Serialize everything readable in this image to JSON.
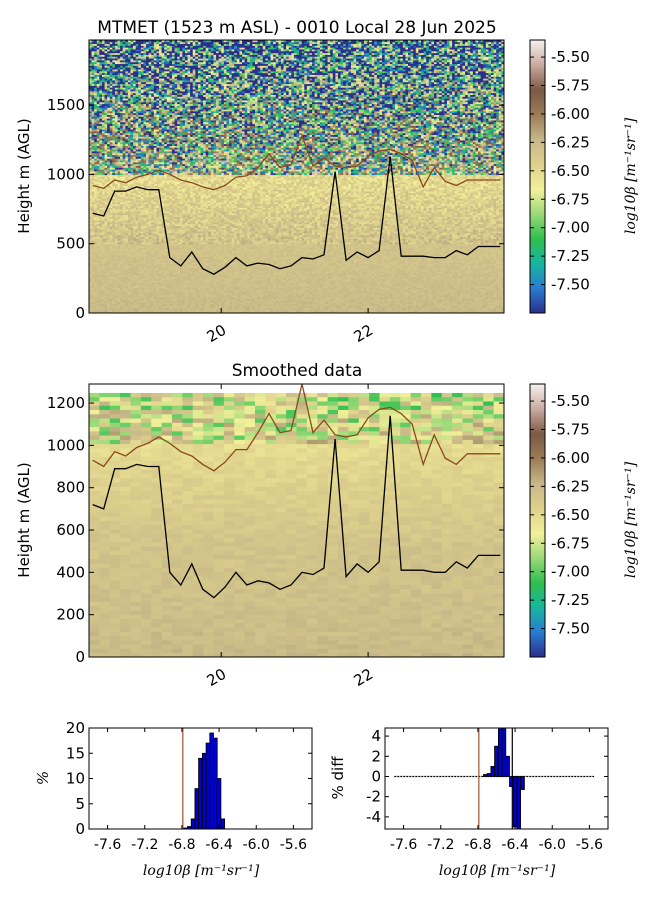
{
  "figure": {
    "title": "MTMET (1523 m ASL) - 0010 Local 28 Jun 2025"
  },
  "colorbar": {
    "label": "log10β [m⁻¹sr⁻¹]",
    "range": [
      -7.75,
      -5.35
    ],
    "ticks": [
      "-5.50",
      "-5.75",
      "-6.00",
      "-6.25",
      "-6.50",
      "-6.75",
      "-7.00",
      "-7.25",
      "-7.50"
    ],
    "colormap": [
      "#2b2f8a",
      "#2a7bd0",
      "#18b5a0",
      "#2fbf4f",
      "#9bd878",
      "#f3f09a",
      "#ddd08c",
      "#c7b888",
      "#9b7d58",
      "#7a5a45",
      "#c9a99e",
      "#f5f0ee"
    ]
  },
  "chart_data": [
    {
      "type": "heatmap",
      "title": "",
      "ylabel": "Height m (AGL)",
      "xlabel": "",
      "xlim": [
        18.2,
        23.85
      ],
      "ylim": [
        0,
        1970
      ],
      "xticks": [
        "20",
        "22"
      ],
      "xtick_values": [
        20,
        22
      ],
      "yticks": [
        "0",
        "500",
        "1000",
        "1500"
      ],
      "ytick_values": [
        0,
        500,
        1000,
        1500
      ],
      "series": [
        {
          "color": "#000000",
          "x": [
            18.25,
            18.4,
            18.55,
            18.7,
            18.85,
            19.0,
            19.15,
            19.3,
            19.45,
            19.6,
            19.75,
            19.9,
            20.05,
            20.2,
            20.35,
            20.5,
            20.65,
            20.8,
            20.95,
            21.1,
            21.25,
            21.4,
            21.55,
            21.7,
            21.85,
            22.0,
            22.15,
            22.3,
            22.45,
            22.6,
            22.75,
            22.9,
            23.05,
            23.2,
            23.35,
            23.5,
            23.65,
            23.8
          ],
          "y": [
            720,
            700,
            880,
            880,
            910,
            890,
            890,
            400,
            340,
            440,
            320,
            280,
            330,
            400,
            340,
            360,
            350,
            320,
            340,
            400,
            390,
            420,
            1020,
            380,
            440,
            400,
            450,
            1130,
            410,
            410,
            410,
            400,
            400,
            450,
            420,
            480,
            480,
            480
          ]
        },
        {
          "color": "#8a4a1e",
          "x": [
            18.25,
            18.4,
            18.55,
            18.7,
            18.85,
            19.0,
            19.15,
            19.3,
            19.45,
            19.6,
            19.75,
            19.9,
            20.05,
            20.2,
            20.35,
            20.5,
            20.65,
            20.8,
            20.95,
            21.1,
            21.25,
            21.4,
            21.55,
            21.7,
            21.85,
            22.0,
            22.15,
            22.3,
            22.45,
            22.6,
            22.75,
            22.9,
            23.05,
            23.2,
            23.35,
            23.5,
            23.65,
            23.8
          ],
          "y": [
            920,
            900,
            960,
            940,
            980,
            1000,
            1030,
            1000,
            960,
            940,
            910,
            890,
            920,
            980,
            990,
            1050,
            1150,
            1050,
            1070,
            1280,
            1060,
            1120,
            1060,
            1050,
            1060,
            1130,
            1170,
            1180,
            1150,
            1100,
            910,
            1050,
            950,
            920,
            960,
            960,
            960,
            960
          ]
        }
      ]
    },
    {
      "type": "heatmap",
      "title": "Smoothed data",
      "ylabel": "Height m (AGL)",
      "xlabel": "",
      "xlim": [
        18.2,
        23.85
      ],
      "ylim": [
        0,
        1290
      ],
      "xticks": [
        "20",
        "22"
      ],
      "xtick_values": [
        20,
        22
      ],
      "yticks": [
        "0",
        "200",
        "400",
        "600",
        "800",
        "1000",
        "1200"
      ],
      "ytick_values": [
        0,
        200,
        400,
        600,
        800,
        1000,
        1200
      ],
      "series": [
        {
          "color": "#000000",
          "x": [
            18.25,
            18.4,
            18.55,
            18.7,
            18.85,
            19.0,
            19.15,
            19.3,
            19.45,
            19.6,
            19.75,
            19.9,
            20.05,
            20.2,
            20.35,
            20.5,
            20.65,
            20.8,
            20.95,
            21.1,
            21.25,
            21.4,
            21.55,
            21.7,
            21.85,
            22.0,
            22.15,
            22.3,
            22.45,
            22.6,
            22.75,
            22.9,
            23.05,
            23.2,
            23.35,
            23.5,
            23.65,
            23.8
          ],
          "y": [
            720,
            700,
            890,
            890,
            910,
            900,
            900,
            400,
            340,
            440,
            320,
            280,
            330,
            400,
            340,
            360,
            350,
            320,
            340,
            400,
            390,
            420,
            1030,
            380,
            440,
            400,
            450,
            1140,
            410,
            410,
            410,
            400,
            400,
            450,
            420,
            480,
            480,
            480
          ]
        },
        {
          "color": "#8a4a1e",
          "x": [
            18.25,
            18.4,
            18.55,
            18.7,
            18.85,
            19.0,
            19.15,
            19.3,
            19.45,
            19.6,
            19.75,
            19.9,
            20.05,
            20.2,
            20.35,
            20.5,
            20.65,
            20.8,
            20.95,
            21.1,
            21.25,
            21.4,
            21.55,
            21.7,
            21.85,
            22.0,
            22.15,
            22.3,
            22.45,
            22.6,
            22.75,
            22.9,
            23.05,
            23.2,
            23.35,
            23.5,
            23.65,
            23.8
          ],
          "y": [
            930,
            900,
            970,
            950,
            990,
            1010,
            1040,
            1010,
            970,
            950,
            910,
            880,
            920,
            980,
            980,
            1060,
            1150,
            1060,
            1070,
            1290,
            1060,
            1120,
            1050,
            1040,
            1050,
            1130,
            1170,
            1180,
            1150,
            1100,
            910,
            1050,
            940,
            910,
            960,
            960,
            960,
            960
          ]
        }
      ]
    },
    {
      "type": "bar",
      "title": "",
      "ylabel": "%",
      "xlabel": "log10β [m⁻¹sr⁻¹]",
      "xlim": [
        -7.8,
        -5.4
      ],
      "ylim": [
        0,
        20
      ],
      "xticks": [
        "-7.6",
        "-7.2",
        "-6.8",
        "-6.4",
        "-6.0",
        "-5.6"
      ],
      "xtick_values": [
        -7.6,
        -7.2,
        -6.8,
        -6.4,
        -6.0,
        -5.6
      ],
      "yticks": [
        "0",
        "5",
        "10",
        "15",
        "20"
      ],
      "ytick_values": [
        0,
        5,
        10,
        15,
        20
      ],
      "vline": -6.79,
      "bar_width": 0.04,
      "x": [
        -6.76,
        -6.72,
        -6.68,
        -6.64,
        -6.6,
        -6.56,
        -6.52,
        -6.48,
        -6.44,
        -6.4,
        -6.36
      ],
      "values": [
        0.2,
        0.5,
        2,
        8,
        14,
        15,
        17,
        19,
        18,
        10,
        2
      ]
    },
    {
      "type": "bar",
      "title": "",
      "ylabel": "% diff",
      "xlabel": "log10β [m⁻¹sr⁻¹]",
      "xlim": [
        -7.8,
        -5.4
      ],
      "ylim": [
        -5.2,
        4.8
      ],
      "xticks": [
        "-7.6",
        "-7.2",
        "-6.8",
        "-6.4",
        "-6.0",
        "-5.6"
      ],
      "xtick_values": [
        -7.6,
        -7.2,
        -6.8,
        -6.4,
        -6.0,
        -5.6
      ],
      "yticks": [
        "-4",
        "-2",
        "0",
        "2",
        "4"
      ],
      "ytick_values": [
        -4,
        -2,
        0,
        2,
        4
      ],
      "vlines": [
        -6.79,
        -6.43
      ],
      "bar_width": 0.04,
      "x": [
        -6.72,
        -6.68,
        -6.64,
        -6.6,
        -6.56,
        -6.52,
        -6.48,
        -6.44,
        -6.4,
        -6.36,
        -6.32
      ],
      "values": [
        0.2,
        0.3,
        1,
        3,
        4.8,
        4.8,
        2,
        -1,
        -5,
        -5.2,
        -1.3
      ]
    }
  ]
}
